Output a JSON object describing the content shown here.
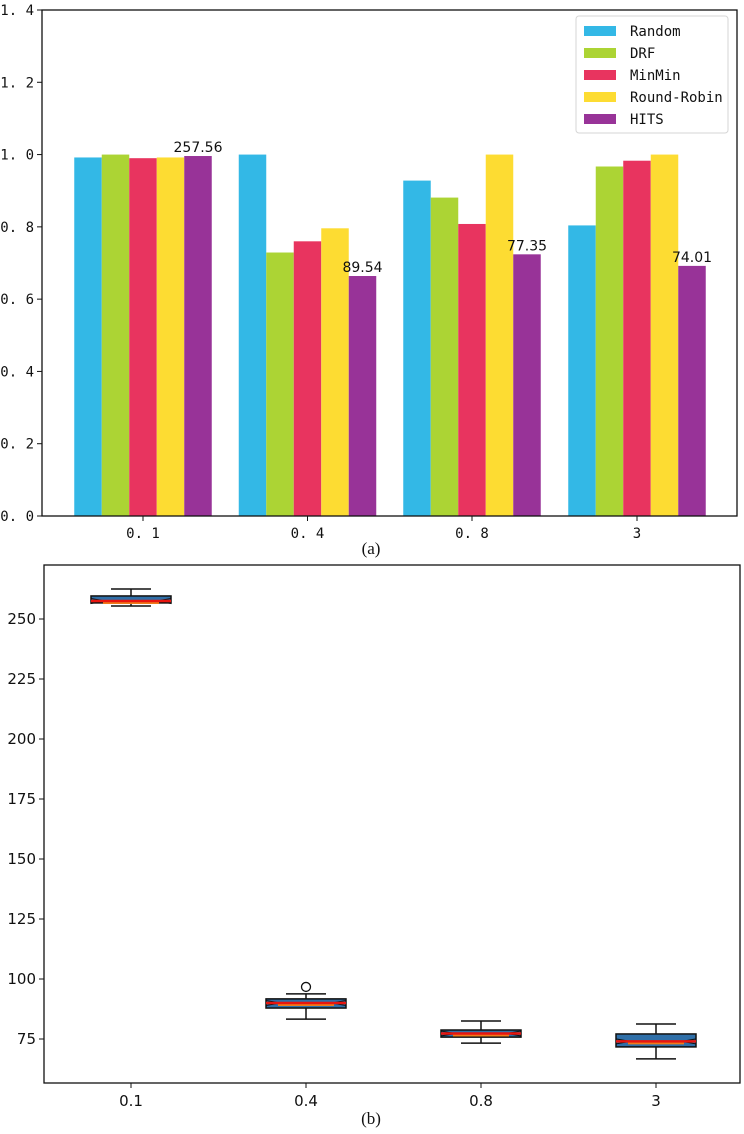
{
  "chart_data": [
    {
      "id": "a",
      "type": "bar",
      "title": "",
      "caption": "(a)",
      "xlabel": "",
      "ylabel": "",
      "categories": [
        "0.1",
        "0.4",
        "0.8",
        "3"
      ],
      "ylim": [
        0.0,
        1.4
      ],
      "yticks": [
        "0.0",
        "0.2",
        "0.4",
        "0.6",
        "0.8",
        "1.0",
        "1.2",
        "1.4"
      ],
      "xtick_labels": [
        "0. 1",
        "0. 4",
        "0. 8",
        "3"
      ],
      "grid": false,
      "legend_position": "upper right",
      "series": [
        {
          "name": "Random",
          "color": "#33b8e6",
          "values": [
            0.992,
            1.0,
            0.928,
            0.804
          ]
        },
        {
          "name": "DRF",
          "color": "#acd434",
          "values": [
            1.0,
            0.729,
            0.881,
            0.967
          ]
        },
        {
          "name": "MinMin",
          "color": "#e8345f",
          "values": [
            0.99,
            0.76,
            0.808,
            0.983
          ]
        },
        {
          "name": "Round-Robin",
          "color": "#fddc32",
          "values": [
            0.992,
            0.796,
            1.0,
            1.0
          ]
        },
        {
          "name": "HITS",
          "color": "#983398",
          "values": [
            0.996,
            0.664,
            0.724,
            0.692
          ]
        }
      ],
      "annotations": [
        {
          "category": "0.1",
          "series": "HITS",
          "text": "257.56"
        },
        {
          "category": "0.4",
          "series": "HITS",
          "text": "89.54"
        },
        {
          "category": "0.8",
          "series": "HITS",
          "text": "77.35"
        },
        {
          "category": "3",
          "series": "HITS",
          "text": "74.01"
        }
      ]
    },
    {
      "id": "b",
      "type": "box",
      "title": "",
      "caption": "(b)",
      "xlabel": "",
      "ylabel": "",
      "categories": [
        "0.1",
        "0.4",
        "0.8",
        "3"
      ],
      "ylim": [
        56.7,
        272
      ],
      "yticks": [
        75,
        100,
        125,
        150,
        175,
        200,
        225,
        250
      ],
      "grid": false,
      "notched": true,
      "box_fill": "#2f6fa8",
      "median_color": "#e8150f",
      "mean_color": "#f07a1a",
      "boxes": [
        {
          "category": "0.1",
          "whisker_low": 255.4,
          "q1": 256.7,
          "median": 257.5,
          "q3": 259.6,
          "whisker_high": 262.5,
          "outliers": []
        },
        {
          "category": "0.4",
          "whisker_low": 83.3,
          "q1": 87.9,
          "median": 90.0,
          "q3": 91.7,
          "whisker_high": 93.8,
          "outliers": [
            96.7
          ]
        },
        {
          "category": "0.8",
          "whisker_low": 73.3,
          "q1": 75.8,
          "median": 77.3,
          "q3": 78.75,
          "whisker_high": 82.5,
          "outliers": []
        },
        {
          "category": "3",
          "whisker_low": 66.7,
          "q1": 71.7,
          "median": 74.0,
          "q3": 77.1,
          "whisker_high": 81.25,
          "outliers": []
        }
      ]
    }
  ]
}
